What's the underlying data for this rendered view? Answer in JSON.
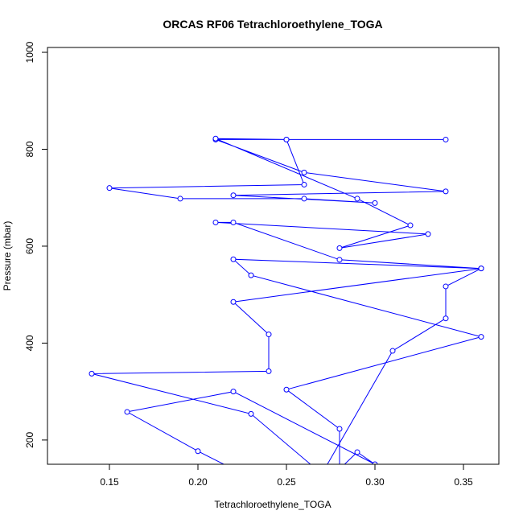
{
  "chart_data": {
    "type": "line",
    "title": "ORCAS RF06 Tetrachloroethylene_TOGA",
    "xlabel": "Tetrachloroethylene_TOGA",
    "ylabel": "Pressure (mbar)",
    "xlim": [
      0.115,
      0.37
    ],
    "ylim": [
      1010,
      150
    ],
    "x_ticks": [
      0.15,
      0.2,
      0.25,
      0.3,
      0.35
    ],
    "x_tick_labels": [
      "0.15",
      "0.20",
      "0.25",
      "0.30",
      "0.35"
    ],
    "y_ticks": [
      200,
      400,
      600,
      800,
      1000
    ],
    "y_tick_labels": [
      "200",
      "400",
      "600",
      "800",
      "1000"
    ],
    "y_axis_reversed": true,
    "grid": false,
    "series": [
      {
        "color": "#0000ff",
        "marker": "open-circle",
        "x": [
          0.34,
          0.25,
          0.21,
          0.26,
          0.34,
          0.22,
          0.3,
          0.26,
          0.19,
          0.15,
          0.26,
          0.25,
          0.21,
          0.29,
          0.32,
          0.28,
          0.33,
          0.21,
          0.22,
          0.28,
          0.36,
          0.22,
          0.24,
          0.24,
          0.14,
          0.23,
          0.27,
          0.31,
          0.34,
          0.34,
          0.36,
          0.22,
          0.23,
          0.36,
          0.25,
          0.28,
          0.28,
          0.29,
          0.3,
          0.22,
          0.16,
          0.2,
          0.22
        ],
        "y": [
          820,
          820,
          820,
          752,
          713,
          705,
          689,
          698,
          698,
          720,
          727,
          820,
          822,
          698,
          643,
          596,
          625,
          649,
          649,
          572,
          554,
          485,
          418,
          342,
          337,
          254,
          130,
          384,
          451,
          517,
          554,
          573,
          540,
          413,
          304,
          223,
          140,
          175,
          150,
          300,
          258,
          177,
          140
        ]
      }
    ]
  }
}
